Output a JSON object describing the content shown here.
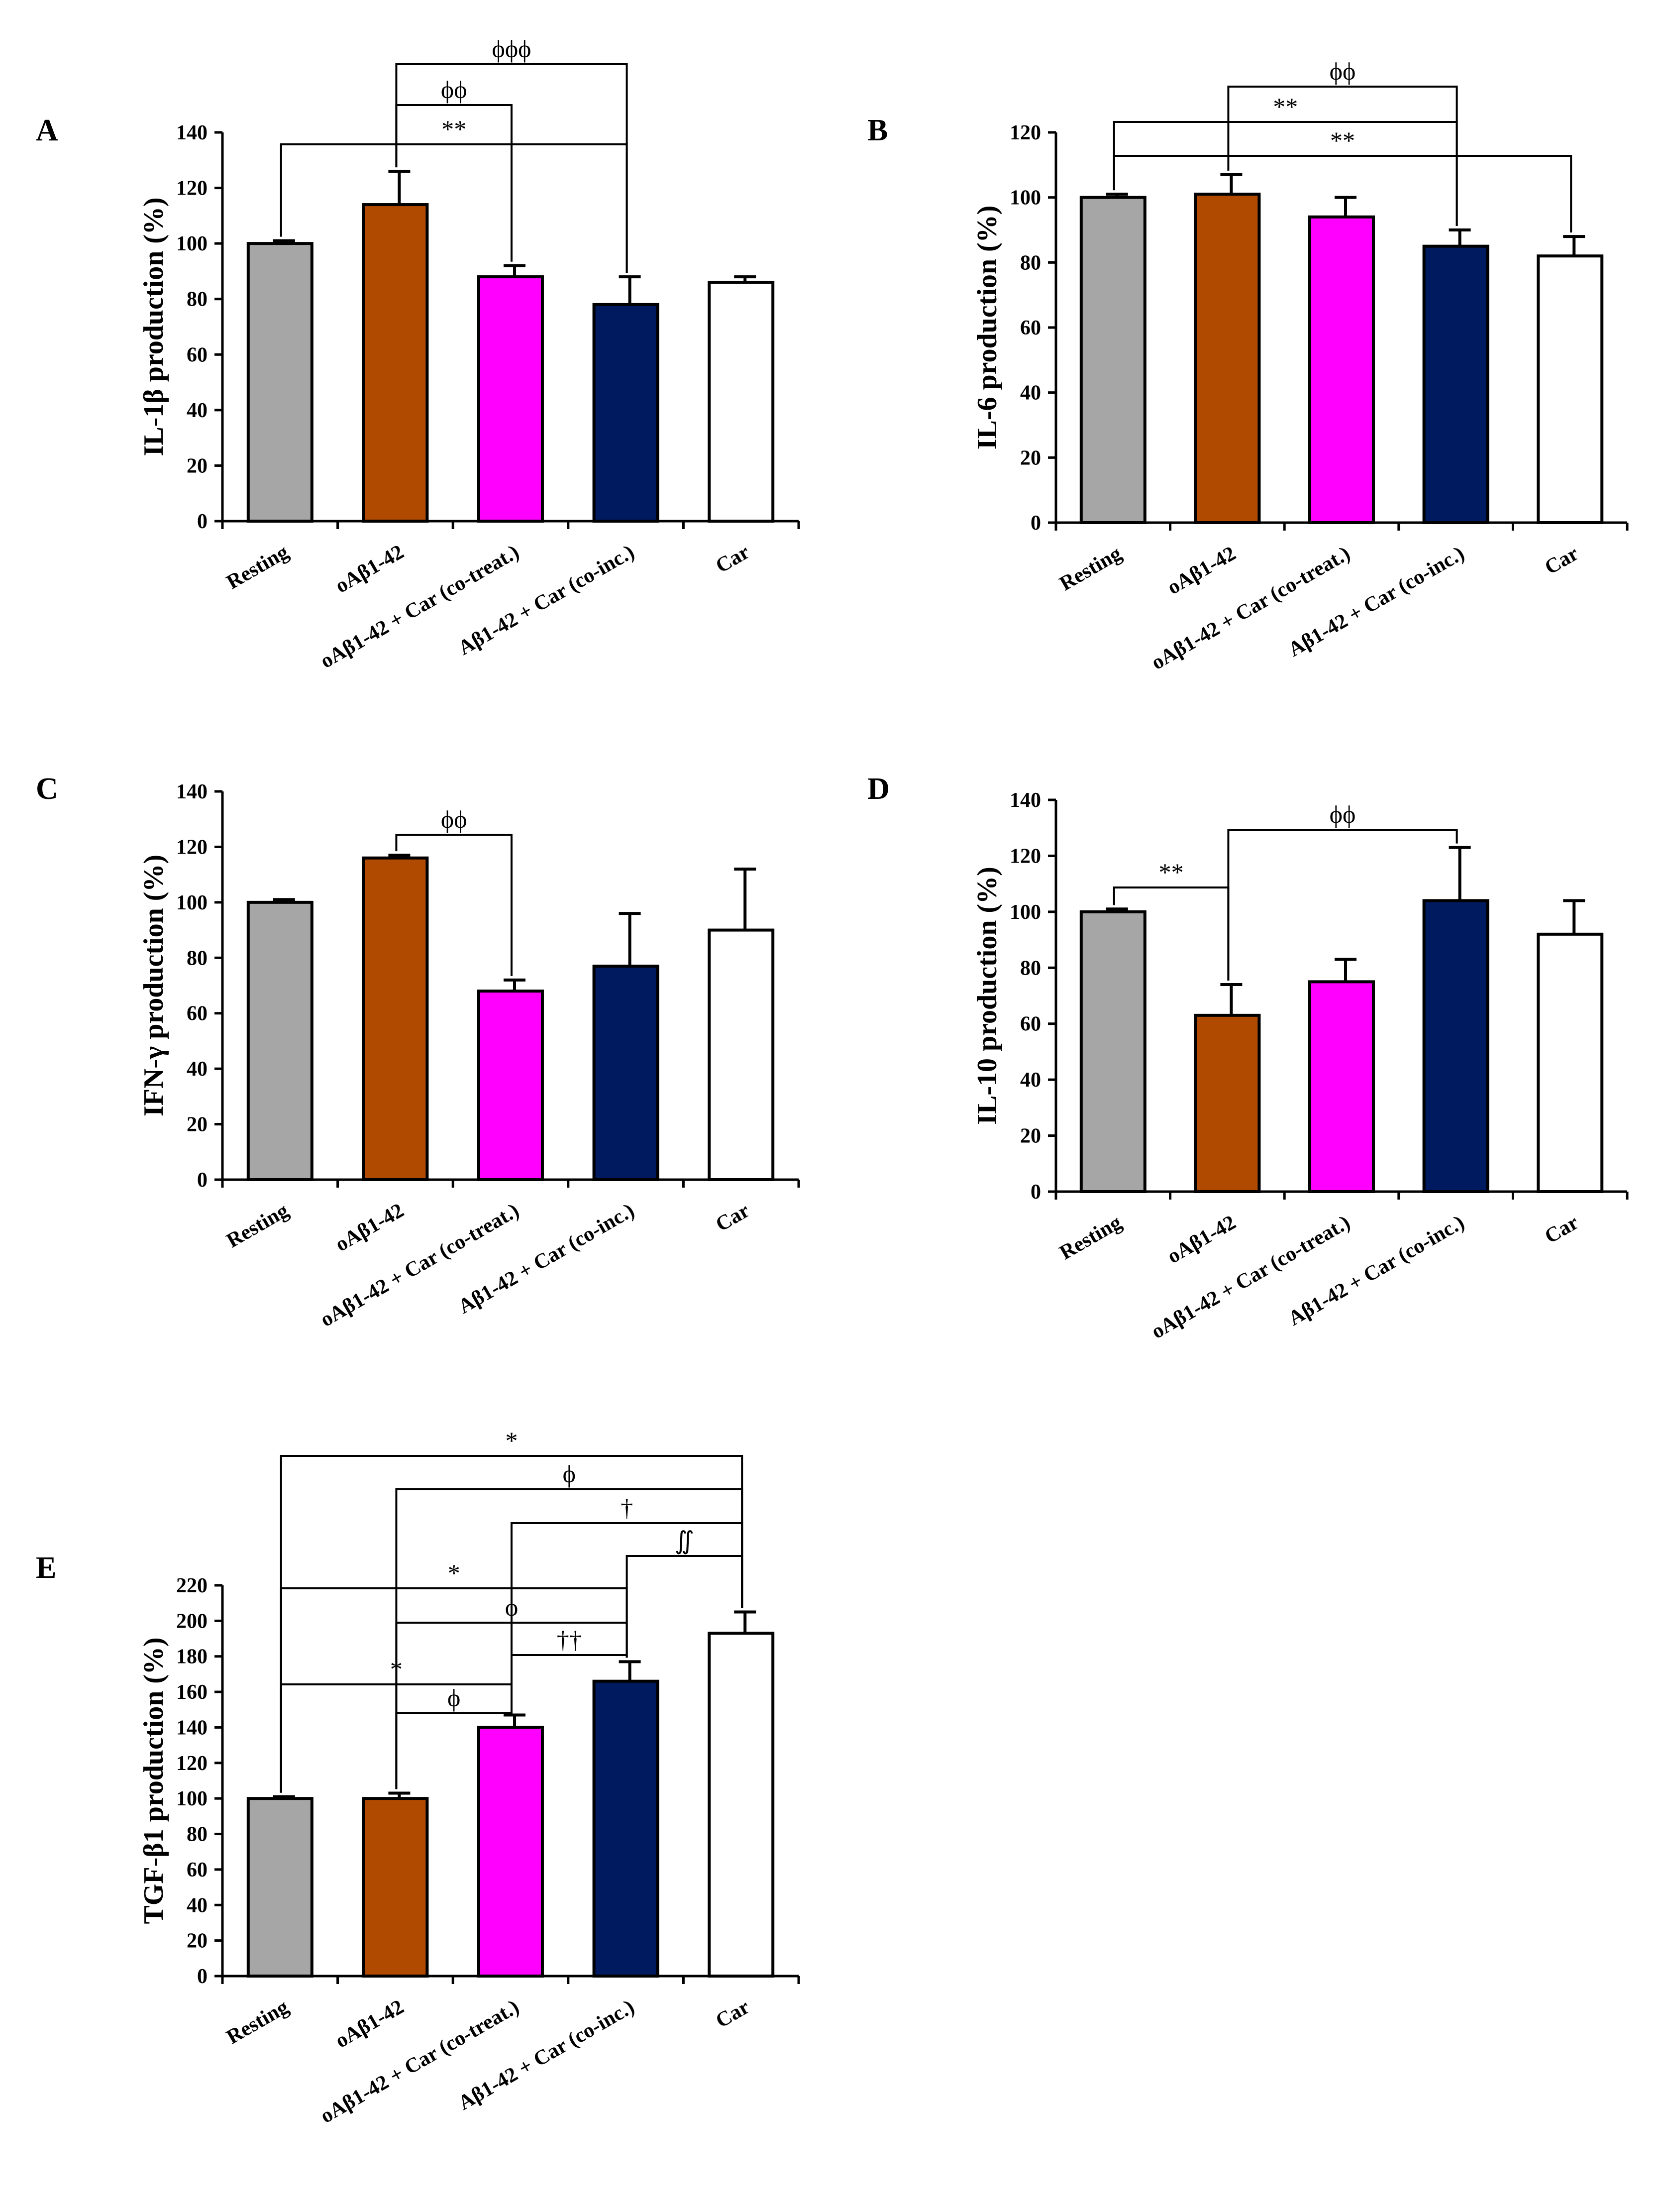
{
  "colors": {
    "Resting": "#a6a6a6",
    "oAβ1-42": "#b04a00",
    "oAβ1-42 + Car (co-treat.)": "#ff00ff",
    "Aβ1-42 + Car (co-inc.)": "#001a60",
    "Car": "#ffffff"
  },
  "chart_data": [
    {
      "panel": "A",
      "type": "bar",
      "ylabel": "IL-1β production (%)",
      "ylim": [
        0,
        140
      ],
      "yticks": [
        0,
        20,
        40,
        60,
        80,
        100,
        120,
        140
      ],
      "categories": [
        "Resting",
        "oAβ1-42",
        "oAβ1-42 + Car (co-treat.)",
        "Aβ1-42 + Car (co-inc.)",
        "Car"
      ],
      "values": [
        100,
        114,
        88,
        78,
        86
      ],
      "errors": [
        1,
        12,
        4,
        10,
        2
      ],
      "annotations": [
        {
          "from": 1,
          "to": 3,
          "label": "ϕϕϕ"
        },
        {
          "from": 1,
          "to": 2,
          "label": "ϕϕ"
        },
        {
          "from": 0,
          "to": 3,
          "label": "**"
        }
      ]
    },
    {
      "panel": "B",
      "type": "bar",
      "ylabel": "IL-6 production (%)",
      "ylim": [
        0,
        120
      ],
      "yticks": [
        0,
        20,
        40,
        60,
        80,
        100,
        120
      ],
      "categories": [
        "Resting",
        "oAβ1-42",
        "oAβ1-42 + Car (co-treat.)",
        "Aβ1-42 + Car (co-inc.)",
        "Car"
      ],
      "values": [
        100,
        101,
        94,
        85,
        82
      ],
      "errors": [
        1,
        6,
        6,
        5,
        6
      ],
      "annotations": [
        {
          "from": 1,
          "to": 3,
          "label": "ϕϕ"
        },
        {
          "from": 0,
          "to": 3,
          "label": "**"
        },
        {
          "from": 0,
          "to": 4,
          "label": "**"
        }
      ]
    },
    {
      "panel": "C",
      "type": "bar",
      "ylabel": "IFN-γ production (%)",
      "ylim": [
        0,
        140
      ],
      "yticks": [
        0,
        20,
        40,
        60,
        80,
        100,
        120,
        140
      ],
      "categories": [
        "Resting",
        "oAβ1-42",
        "oAβ1-42 + Car (co-treat.)",
        "Aβ1-42 + Car (co-inc.)",
        "Car"
      ],
      "values": [
        100,
        116,
        68,
        77,
        90
      ],
      "errors": [
        1,
        1,
        4,
        19,
        22
      ],
      "annotations": [
        {
          "from": 1,
          "to": 2,
          "label": "ϕϕ"
        }
      ]
    },
    {
      "panel": "D",
      "type": "bar",
      "ylabel": "IL-10 production (%)",
      "ylim": [
        0,
        140
      ],
      "yticks": [
        0,
        20,
        40,
        60,
        80,
        100,
        120,
        140
      ],
      "categories": [
        "Resting",
        "oAβ1-42",
        "oAβ1-42 + Car (co-treat.)",
        "Aβ1-42 + Car (co-inc.)",
        "Car"
      ],
      "values": [
        100,
        63,
        75,
        104,
        92
      ],
      "errors": [
        1,
        11,
        8,
        19,
        12
      ],
      "annotations": [
        {
          "from": 1,
          "to": 3,
          "label": "ϕϕ"
        },
        {
          "from": 0,
          "to": 1,
          "label": "**"
        }
      ]
    },
    {
      "panel": "E",
      "type": "bar",
      "ylabel": "TGF-β1 production (%)",
      "ylim": [
        0,
        220
      ],
      "yticks": [
        0,
        20,
        40,
        60,
        80,
        100,
        120,
        140,
        160,
        180,
        200,
        220
      ],
      "categories": [
        "Resting",
        "oAβ1-42",
        "oAβ1-42 + Car (co-treat.)",
        "Aβ1-42 + Car (co-inc.)",
        "Car"
      ],
      "values": [
        100,
        100,
        140,
        166,
        193
      ],
      "errors": [
        1,
        3,
        7,
        11,
        12
      ],
      "annotations": [
        {
          "from": 0,
          "to": 4,
          "label": "*"
        },
        {
          "from": 1,
          "to": 4,
          "label": "ϕ"
        },
        {
          "from": 2,
          "to": 4,
          "label": "†"
        },
        {
          "from": 3,
          "to": 4,
          "label": "∬"
        },
        {
          "from": 0,
          "to": 3,
          "label": "*"
        },
        {
          "from": 1,
          "to": 3,
          "label": "ϕ"
        },
        {
          "from": 2,
          "to": 3,
          "label": "††"
        },
        {
          "from": 0,
          "to": 2,
          "label": "*"
        },
        {
          "from": 1,
          "to": 2,
          "label": "ϕ"
        }
      ]
    }
  ]
}
